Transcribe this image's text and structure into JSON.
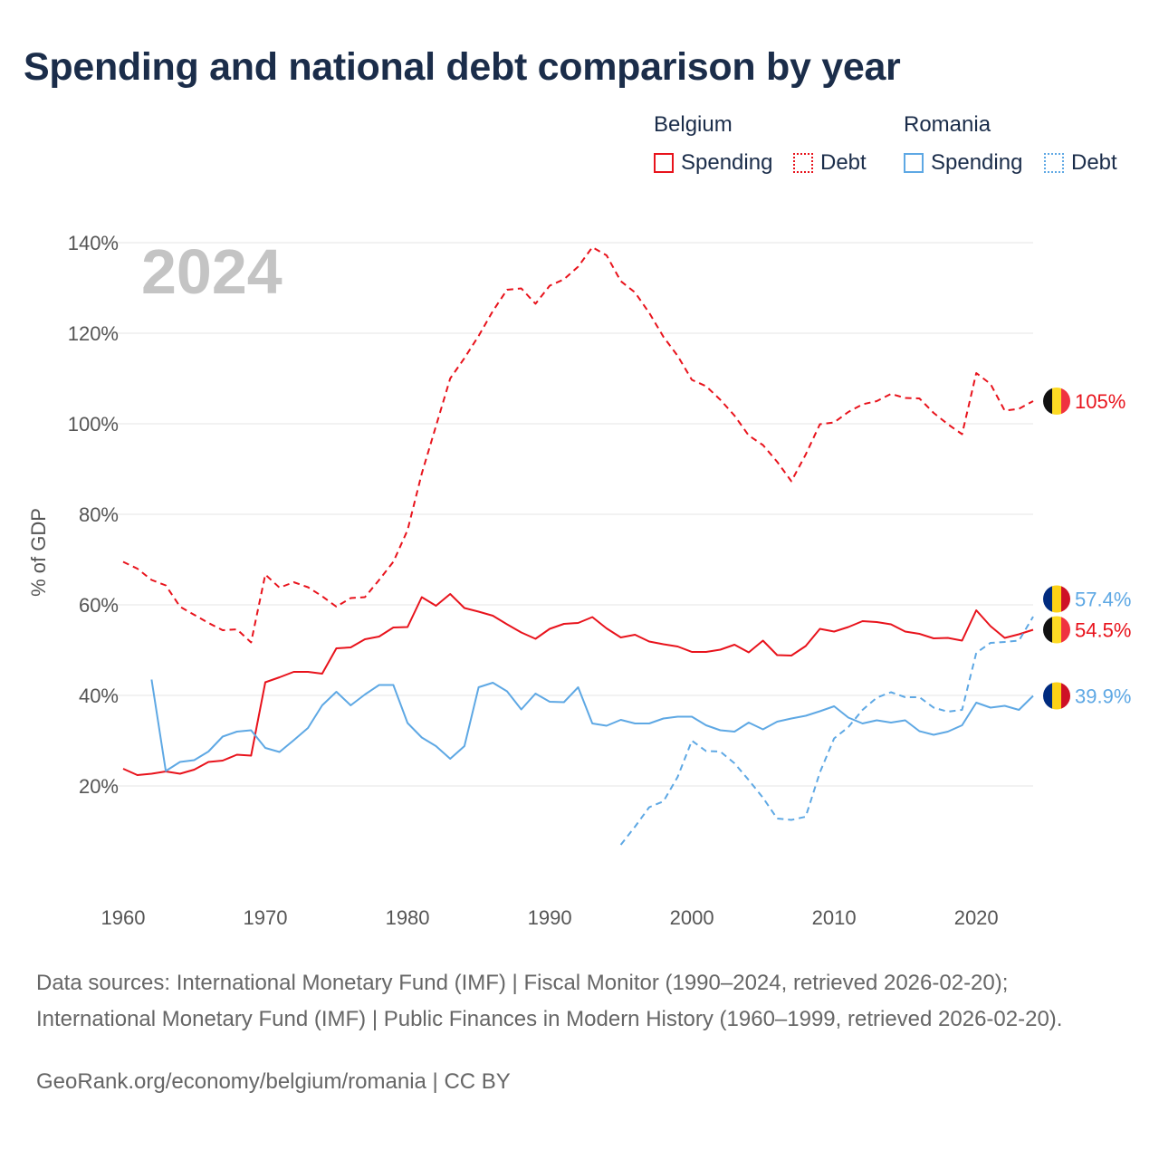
{
  "title": "Spending and national debt comparison by year",
  "legend": {
    "groups": [
      {
        "country": "Belgium",
        "items": [
          {
            "label": "Spending",
            "style": "solid",
            "color": "#e8131c"
          },
          {
            "label": "Debt",
            "style": "dotted",
            "color": "#e8131c"
          }
        ]
      },
      {
        "country": "Romania",
        "items": [
          {
            "label": "Spending",
            "style": "solid",
            "color": "#5ea8e4"
          },
          {
            "label": "Debt",
            "style": "dotted",
            "color": "#5ea8e4"
          }
        ]
      }
    ]
  },
  "source_text": "Data sources: International Monetary Fund (IMF) | Fiscal Monitor (1990–2024, retrieved 2026-02-20); International Monetary Fund (IMF) | Public Finances in Modern History (1960–1999, retrieved 2026-02-20).",
  "credit": "GeoRank.org/economy/belgium/romania | CC BY",
  "chart_data": {
    "type": "line",
    "year_watermark": "2024",
    "ylabel": "% of GDP",
    "xlabel": "",
    "xlim": [
      1960,
      2024
    ],
    "ylim": [
      0,
      140
    ],
    "x_ticks": [
      1960,
      1970,
      1980,
      1990,
      2000,
      2010,
      2020
    ],
    "y_ticks": [
      20,
      40,
      60,
      80,
      100,
      120,
      140
    ],
    "y_tick_labels": [
      "20%",
      "40%",
      "60%",
      "80%",
      "100%",
      "120%",
      "140%"
    ],
    "colors": {
      "belgium": "#e8131c",
      "romania": "#5ea8e4"
    },
    "series": [
      {
        "name": "Belgium Debt",
        "country": "belgium",
        "dashed": true,
        "end_label": "105%",
        "x": [
          1960,
          1961,
          1962,
          1963,
          1964,
          1965,
          1966,
          1967,
          1968,
          1969,
          1970,
          1971,
          1972,
          1973,
          1974,
          1975,
          1976,
          1977,
          1978,
          1979,
          1980,
          1981,
          1982,
          1983,
          1984,
          1985,
          1986,
          1987,
          1988,
          1989,
          1990,
          1991,
          1992,
          1993,
          1994,
          1995,
          1996,
          1997,
          1998,
          1999,
          2000,
          2001,
          2002,
          2003,
          2004,
          2005,
          2006,
          2007,
          2008,
          2009,
          2010,
          2011,
          2012,
          2013,
          2014,
          2015,
          2016,
          2017,
          2018,
          2019,
          2020,
          2021,
          2022,
          2023,
          2024
        ],
        "values": [
          69.5,
          68,
          65.5,
          64.3,
          59.6,
          57.8,
          56,
          54.4,
          54.6,
          51.7,
          66.7,
          63.8,
          65,
          63.9,
          61.9,
          59.6,
          61.5,
          61.7,
          65.5,
          69.5,
          76.5,
          89,
          99.5,
          110,
          114.5,
          119.4,
          124.9,
          129.6,
          129.9,
          126.5,
          130.5,
          131.9,
          134.7,
          139,
          137.2,
          131.5,
          129,
          124.5,
          119.2,
          115,
          109.7,
          108.3,
          105.3,
          101.8,
          97.4,
          95.3,
          91.6,
          87.3,
          93.2,
          99.9,
          100.3,
          102.6,
          104.3,
          105,
          106.6,
          105.7,
          105.6,
          102.4,
          99.9,
          97.7,
          111.2,
          108.8,
          102.9,
          103.3,
          105.0
        ]
      },
      {
        "name": "Belgium Spending",
        "country": "belgium",
        "dashed": false,
        "end_label": "54.5%",
        "x": [
          1960,
          1961,
          1962,
          1963,
          1964,
          1965,
          1966,
          1967,
          1968,
          1969,
          1970,
          1971,
          1972,
          1973,
          1974,
          1975,
          1976,
          1977,
          1978,
          1979,
          1980,
          1981,
          1982,
          1983,
          1984,
          1985,
          1986,
          1987,
          1988,
          1989,
          1990,
          1991,
          1992,
          1993,
          1994,
          1995,
          1996,
          1997,
          1998,
          1999,
          2000,
          2001,
          2002,
          2003,
          2004,
          2005,
          2006,
          2007,
          2008,
          2009,
          2010,
          2011,
          2012,
          2013,
          2014,
          2015,
          2016,
          2017,
          2018,
          2019,
          2020,
          2021,
          2022,
          2023,
          2024
        ],
        "values": [
          23.8,
          22.4,
          22.7,
          23.2,
          22.7,
          23.6,
          25.3,
          25.6,
          26.9,
          26.7,
          42.9,
          44,
          45.2,
          45.2,
          44.8,
          50.4,
          50.6,
          52.4,
          53,
          55,
          55.1,
          61.7,
          59.8,
          62.4,
          59.3,
          58.5,
          57.6,
          55.7,
          53.9,
          52.5,
          54.7,
          55.8,
          56,
          57.3,
          54.8,
          52.8,
          53.4,
          51.9,
          51.3,
          50.8,
          49.6,
          49.6,
          50.1,
          51.2,
          49.5,
          52.1,
          48.9,
          48.8,
          50.9,
          54.7,
          54.1,
          55.1,
          56.4,
          56.2,
          55.7,
          54.1,
          53.6,
          52.6,
          52.7,
          52.1,
          58.8,
          55.3,
          52.7,
          53.5,
          54.5
        ]
      },
      {
        "name": "Romania Debt",
        "country": "romania",
        "dashed": true,
        "end_label": "57.4%",
        "x": [
          1995,
          1996,
          1997,
          1998,
          1999,
          2000,
          2001,
          2002,
          2003,
          2004,
          2005,
          2006,
          2007,
          2008,
          2009,
          2010,
          2011,
          2012,
          2013,
          2014,
          2015,
          2016,
          2017,
          2018,
          2019,
          2020,
          2021,
          2022,
          2023,
          2024
        ],
        "values": [
          7,
          11,
          15.3,
          16.6,
          22,
          30,
          27.7,
          27.6,
          25,
          21.3,
          17.4,
          12.8,
          12.5,
          13.2,
          23,
          30.5,
          33,
          36.8,
          39.5,
          40.7,
          39.6,
          39.6,
          37.3,
          36.4,
          36.8,
          49.4,
          51.6,
          51.8,
          52.1,
          57.4
        ]
      },
      {
        "name": "Romania Spending",
        "country": "romania",
        "dashed": false,
        "end_label": "39.9%",
        "x": [
          1962,
          1963,
          1964,
          1965,
          1966,
          1967,
          1968,
          1969,
          1970,
          1971,
          1972,
          1973,
          1974,
          1975,
          1976,
          1977,
          1978,
          1979,
          1980,
          1981,
          1982,
          1983,
          1984,
          1985,
          1986,
          1987,
          1988,
          1989,
          1990,
          1991,
          1992,
          1993,
          1994,
          1995,
          1996,
          1997,
          1998,
          1999,
          2000,
          2001,
          2002,
          2003,
          2004,
          2005,
          2006,
          2007,
          2008,
          2009,
          2010,
          2011,
          2012,
          2013,
          2014,
          2015,
          2016,
          2017,
          2018,
          2019,
          2020,
          2021,
          2022,
          2023,
          2024
        ],
        "values": [
          43.5,
          23.3,
          25.3,
          25.7,
          27.6,
          30.9,
          32,
          32.3,
          28.4,
          27.5,
          30.1,
          32.8,
          37.8,
          40.8,
          37.8,
          40.2,
          42.3,
          42.3,
          33.9,
          30.7,
          28.8,
          26,
          28.8,
          41.8,
          42.8,
          40.9,
          36.9,
          40.4,
          38.6,
          38.5,
          41.8,
          33.8,
          33.3,
          34.6,
          33.8,
          33.8,
          34.9,
          35.3,
          35.3,
          33.4,
          32.3,
          32,
          34,
          32.5,
          34.2,
          34.9,
          35.5,
          36.5,
          37.6,
          35.1,
          33.8,
          34.5,
          34,
          34.5,
          32.1,
          31.3,
          32,
          33.4,
          38.4,
          37.3,
          37.7,
          36.8,
          39.9
        ]
      }
    ]
  }
}
